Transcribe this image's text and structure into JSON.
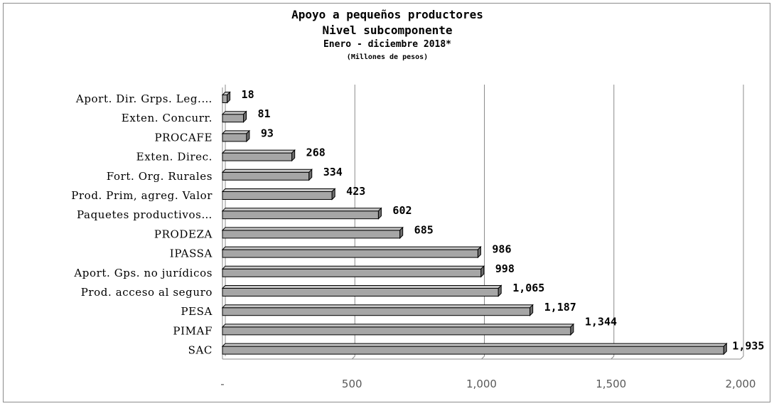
{
  "chart_data": {
    "type": "bar",
    "orientation": "horizontal",
    "title": "Apoyo a pequeños productores",
    "subtitle": "Nivel subcomponente",
    "period": "Enero - diciembre 2018*",
    "units": "(Millones de pesos)",
    "categories": [
      "Aport. Dir.  Grps. Leg.…",
      "Exten. Concurr.",
      "PROCAFE",
      "Exten. Direc.",
      "Fort. Org. Rurales",
      "Prod. Prim, agreg. Valor",
      "Paquetes productivos…",
      "PRODEZA",
      "IPASSA",
      "Aport. Gps. no jurídicos",
      "Prod. acceso al seguro",
      "PESA",
      "PIMAF",
      "SAC"
    ],
    "values": [
      18,
      81,
      93,
      268,
      334,
      423,
      602,
      685,
      986,
      998,
      1065,
      1187,
      1344,
      1935
    ],
    "value_labels": [
      "18",
      "81",
      "93",
      "268",
      "334",
      "423",
      "602",
      "685",
      "986",
      "998",
      "1,065",
      "1,187",
      "1,344",
      "1,935"
    ],
    "x_ticks": [
      0,
      500,
      1000,
      1500,
      2000
    ],
    "x_tick_labels": [
      "-",
      "500",
      "1,000",
      "1,500",
      "2,000"
    ],
    "xlim": [
      0,
      2000
    ],
    "grid": true,
    "legend": "none",
    "bar_color": "#a6a6a6"
  }
}
